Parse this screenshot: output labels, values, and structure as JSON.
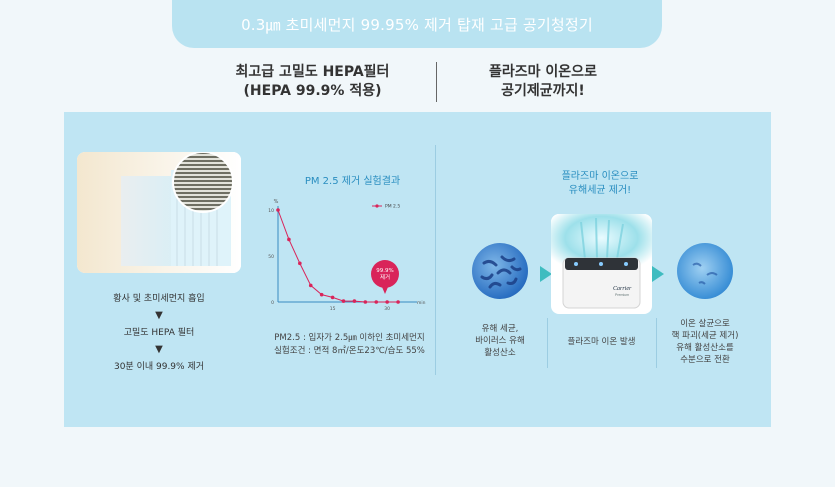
{
  "banner": {
    "title": "0.3㎛ 초미세먼지 99.95% 제거 탑재 고급 공기청정기"
  },
  "headings": {
    "left": [
      "최고급 고밀도 HEPA필터",
      "(HEPA 99.9% 적용)"
    ],
    "right": [
      "플라즈마 이온으로",
      "공기제균까지!"
    ]
  },
  "filter_steps": [
    "황사 및 초미세먼지 흡입",
    "고밀도 HEPA 필터",
    "30분 이내 99.9% 제거"
  ],
  "chart_data": {
    "type": "line",
    "title": "PM 2.5 제거 실험결과",
    "ylabel": "%",
    "xlabel": "min",
    "y_ticks": [
      "10",
      "50",
      "0"
    ],
    "x_ticks": [
      "15",
      "30"
    ],
    "series": [
      {
        "name": "PM 2.5",
        "x": [
          0,
          3,
          6,
          9,
          12,
          15,
          18,
          21,
          24,
          27,
          30,
          33
        ],
        "y": [
          100,
          68,
          42,
          18,
          8,
          5,
          1,
          1,
          0,
          0,
          0,
          0
        ]
      }
    ],
    "ylim": [
      0,
      100
    ],
    "xlim": [
      0,
      36
    ],
    "callout": [
      "99.9%",
      "제거"
    ]
  },
  "chart_note": [
    "PM2.5 : 입자가 2.5㎛ 이하인 초미세먼지",
    "실험조건 : 면적 8㎡/온도23℃/습도 55%"
  ],
  "plasma_title": [
    "플라즈마 이온으로",
    "유해세균 제거!"
  ],
  "captions": {
    "left": [
      "유해 세균,",
      "바이러스 유해",
      "활성산소"
    ],
    "center": "플라즈마 이온 발생",
    "right": [
      "이온 살균으로",
      "핵 파괴(세균 제거)",
      "유해 활성산소를",
      "수분으로 전환"
    ]
  },
  "device": {
    "brand": "Carrier",
    "sub": "Premium"
  },
  "colors": {
    "banner": "#b9e3f1",
    "panel": "#bfe5f3",
    "accent": "#d9245a",
    "arrow": "#3fbcc0"
  }
}
